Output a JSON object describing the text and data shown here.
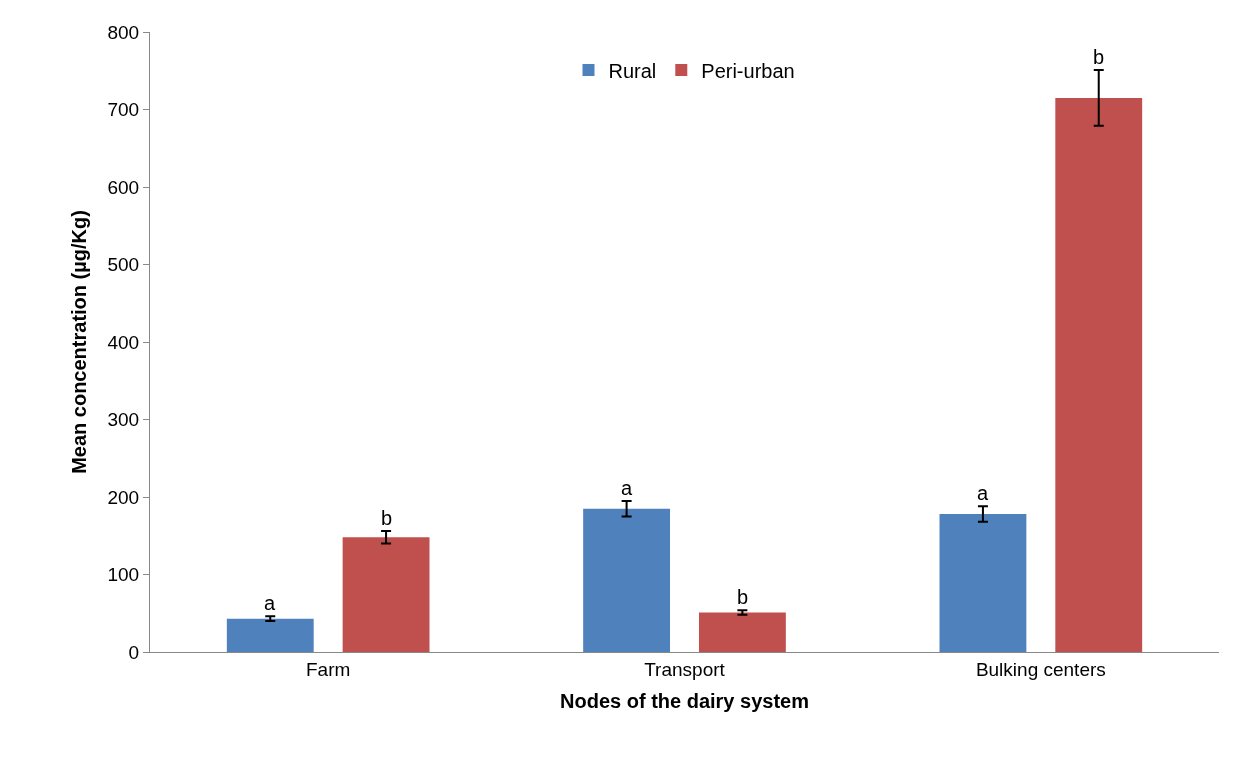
{
  "chart_data": {
    "type": "bar",
    "xlabel": "Nodes of the dairy system",
    "ylabel": "Mean concentration (µg/Kg)",
    "categories": [
      "Farm",
      "Transport",
      "Bulking centers"
    ],
    "series": [
      {
        "name": "Rural",
        "color": "#4f81bd",
        "values": [
          43,
          185,
          178
        ],
        "errors": [
          3,
          10,
          10
        ],
        "value_labels": [
          "a",
          "a",
          "a"
        ]
      },
      {
        "name": "Peri-urban",
        "color": "#c0504d",
        "values": [
          148,
          51,
          715
        ],
        "errors": [
          8,
          3,
          36
        ],
        "value_labels": [
          "b",
          "b",
          "b"
        ]
      }
    ],
    "ylim": [
      0,
      800
    ],
    "yticks": [
      0,
      100,
      200,
      300,
      400,
      500,
      600,
      700,
      800
    ],
    "legend": "top"
  }
}
